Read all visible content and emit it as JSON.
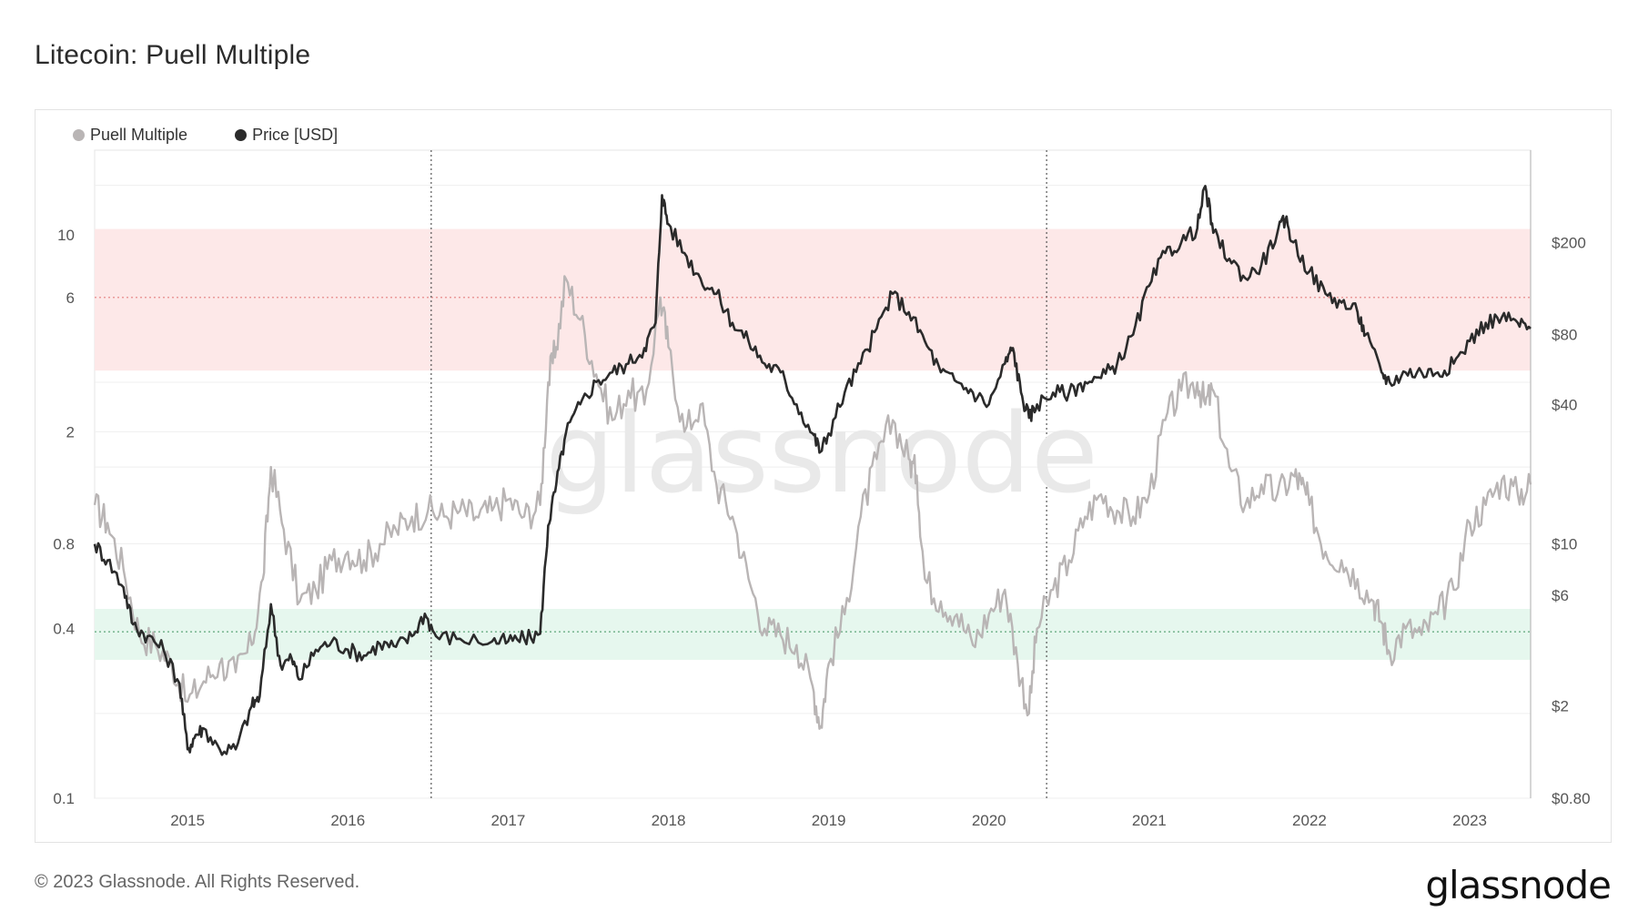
{
  "title": "Litecoin: Puell Multiple",
  "footer": "© 2023 Glassnode. All Rights Reserved.",
  "brand": "glassnode",
  "watermark": "glassnode",
  "legend": [
    {
      "label": "Puell Multiple",
      "color": "#b9b5b5"
    },
    {
      "label": "Price [USD]",
      "color": "#2b2b2b"
    }
  ],
  "chart_data": {
    "type": "line",
    "x_ticks": [
      "2015",
      "2016",
      "2017",
      "2018",
      "2019",
      "2020",
      "2021",
      "2022",
      "2023"
    ],
    "x_range": [
      2014.42,
      2023.38
    ],
    "left_axis": {
      "scale": "log",
      "range": [
        0.1,
        20
      ],
      "ticks": [
        "0.1",
        "0.4",
        "0.8",
        "2",
        "6",
        "10"
      ]
    },
    "right_axis": {
      "scale": "log",
      "range": [
        0.8,
        500
      ],
      "ticks": [
        "$0.80",
        "$2",
        "$6",
        "$10",
        "$40",
        "$80",
        "$200"
      ]
    },
    "bands": [
      {
        "from": 3.3,
        "to": 10.5,
        "color": "#fde8e8",
        "line": 6,
        "line_color": "#e48080"
      },
      {
        "from": 0.31,
        "to": 0.47,
        "color": "#e6f7ee",
        "line": 0.39,
        "line_color": "#5fa57a"
      }
    ],
    "vlines": [
      2016.52,
      2020.36
    ],
    "series": [
      {
        "name": "Puell Multiple",
        "axis": "left",
        "color": "#b9b5b5",
        "x": [
          2014.42,
          2014.5,
          2014.6,
          2014.7,
          2014.8,
          2014.9,
          2015.0,
          2015.1,
          2015.2,
          2015.3,
          2015.4,
          2015.47,
          2015.52,
          2015.6,
          2015.7,
          2015.8,
          2015.9,
          2016.0,
          2016.1,
          2016.2,
          2016.3,
          2016.4,
          2016.5,
          2016.6,
          2016.7,
          2016.8,
          2016.9,
          2017.0,
          2017.1,
          2017.2,
          2017.25,
          2017.3,
          2017.36,
          2017.45,
          2017.55,
          2017.65,
          2017.75,
          2017.85,
          2017.95,
          2018.0,
          2018.1,
          2018.2,
          2018.3,
          2018.4,
          2018.5,
          2018.6,
          2018.7,
          2018.8,
          2018.9,
          2018.95,
          2019.0,
          2019.1,
          2019.2,
          2019.3,
          2019.4,
          2019.5,
          2019.55,
          2019.6,
          2019.7,
          2019.8,
          2019.9,
          2020.0,
          2020.1,
          2020.18,
          2020.25,
          2020.3,
          2020.4,
          2020.5,
          2020.6,
          2020.7,
          2020.8,
          2020.9,
          2021.0,
          2021.1,
          2021.2,
          2021.3,
          2021.35,
          2021.4,
          2021.5,
          2021.6,
          2021.7,
          2021.8,
          2021.9,
          2021.95,
          2022.0,
          2022.1,
          2022.2,
          2022.3,
          2022.4,
          2022.45,
          2022.5,
          2022.6,
          2022.7,
          2022.8,
          2022.9,
          2023.0,
          2023.1,
          2023.2,
          2023.3,
          2023.38
        ],
        "y": [
          1.1,
          0.95,
          0.65,
          0.38,
          0.35,
          0.3,
          0.22,
          0.26,
          0.3,
          0.28,
          0.35,
          0.6,
          1.5,
          0.9,
          0.5,
          0.55,
          0.7,
          0.75,
          0.7,
          0.8,
          0.9,
          1.0,
          1.05,
          1.0,
          1.05,
          1.0,
          1.05,
          1.15,
          1.0,
          1.1,
          3.0,
          4.0,
          7.0,
          5.0,
          3.2,
          2.2,
          2.8,
          2.5,
          6.0,
          4.0,
          2.0,
          2.5,
          1.3,
          1.0,
          0.6,
          0.4,
          0.38,
          0.35,
          0.25,
          0.18,
          0.3,
          0.45,
          1.0,
          1.6,
          2.2,
          1.6,
          1.4,
          0.6,
          0.5,
          0.45,
          0.35,
          0.45,
          0.55,
          0.3,
          0.2,
          0.4,
          0.55,
          0.7,
          1.0,
          1.2,
          1.05,
          1.0,
          1.2,
          2.2,
          2.8,
          3.0,
          2.5,
          2.8,
          1.5,
          1.1,
          1.3,
          1.2,
          1.4,
          1.3,
          1.1,
          0.75,
          0.7,
          0.6,
          0.5,
          0.42,
          0.33,
          0.4,
          0.38,
          0.45,
          0.55,
          0.95,
          1.1,
          1.35,
          1.2,
          1.3
        ]
      },
      {
        "name": "Price [USD]",
        "axis": "right",
        "color": "#2b2b2b",
        "x": [
          2014.42,
          2014.5,
          2014.6,
          2014.66,
          2014.75,
          2014.85,
          2014.95,
          2015.0,
          2015.05,
          2015.1,
          2015.2,
          2015.3,
          2015.4,
          2015.45,
          2015.52,
          2015.58,
          2015.65,
          2015.7,
          2015.8,
          2015.9,
          2016.0,
          2016.1,
          2016.2,
          2016.3,
          2016.4,
          2016.48,
          2016.55,
          2016.7,
          2016.9,
          2017.0,
          2017.1,
          2017.2,
          2017.25,
          2017.3,
          2017.36,
          2017.45,
          2017.55,
          2017.65,
          2017.75,
          2017.85,
          2017.92,
          2017.96,
          2018.0,
          2018.1,
          2018.2,
          2018.3,
          2018.4,
          2018.5,
          2018.6,
          2018.7,
          2018.8,
          2018.9,
          2018.95,
          2019.0,
          2019.1,
          2019.2,
          2019.3,
          2019.4,
          2019.5,
          2019.6,
          2019.7,
          2019.8,
          2019.9,
          2020.0,
          2020.1,
          2020.15,
          2020.2,
          2020.25,
          2020.3,
          2020.4,
          2020.5,
          2020.6,
          2020.7,
          2020.8,
          2020.9,
          2021.0,
          2021.1,
          2021.2,
          2021.3,
          2021.35,
          2021.4,
          2021.5,
          2021.6,
          2021.7,
          2021.8,
          2021.85,
          2021.9,
          2022.0,
          2022.1,
          2022.2,
          2022.3,
          2022.35,
          2022.45,
          2022.5,
          2022.6,
          2022.7,
          2022.8,
          2022.9,
          2023.0,
          2023.1,
          2023.2,
          2023.3,
          2023.38
        ],
        "y": [
          10,
          8.5,
          6.5,
          4.5,
          4,
          3.5,
          2.5,
          1.3,
          1.5,
          1.6,
          1.3,
          1.3,
          2.0,
          2.2,
          5.5,
          3.0,
          3.2,
          2.6,
          3.5,
          3.8,
          3.5,
          3.3,
          3.7,
          3.6,
          4.0,
          5.0,
          4.0,
          3.9,
          3.8,
          3.8,
          3.9,
          4.1,
          12.0,
          18.0,
          30.0,
          40.0,
          50.0,
          55.0,
          60.0,
          70.0,
          90.0,
          320.0,
          240.0,
          180.0,
          140.0,
          120.0,
          90.0,
          75.0,
          60.0,
          55.0,
          40.0,
          30.0,
          25.0,
          30.0,
          45.0,
          60.0,
          85.0,
          120.0,
          100.0,
          75.0,
          55.0,
          50.0,
          45.0,
          40.0,
          60.0,
          70.0,
          45.0,
          35.0,
          40.0,
          45.0,
          45.0,
          50.0,
          52.0,
          60.0,
          80.0,
          130.0,
          180.0,
          200.0,
          230.0,
          350.0,
          220.0,
          170.0,
          140.0,
          160.0,
          220.0,
          250.0,
          200.0,
          150.0,
          120.0,
          110.0,
          100.0,
          80.0,
          55.0,
          50.0,
          55.0,
          55.0,
          55.0,
          60.0,
          75.0,
          90.0,
          95.0,
          90.0,
          85.0
        ]
      }
    ]
  }
}
